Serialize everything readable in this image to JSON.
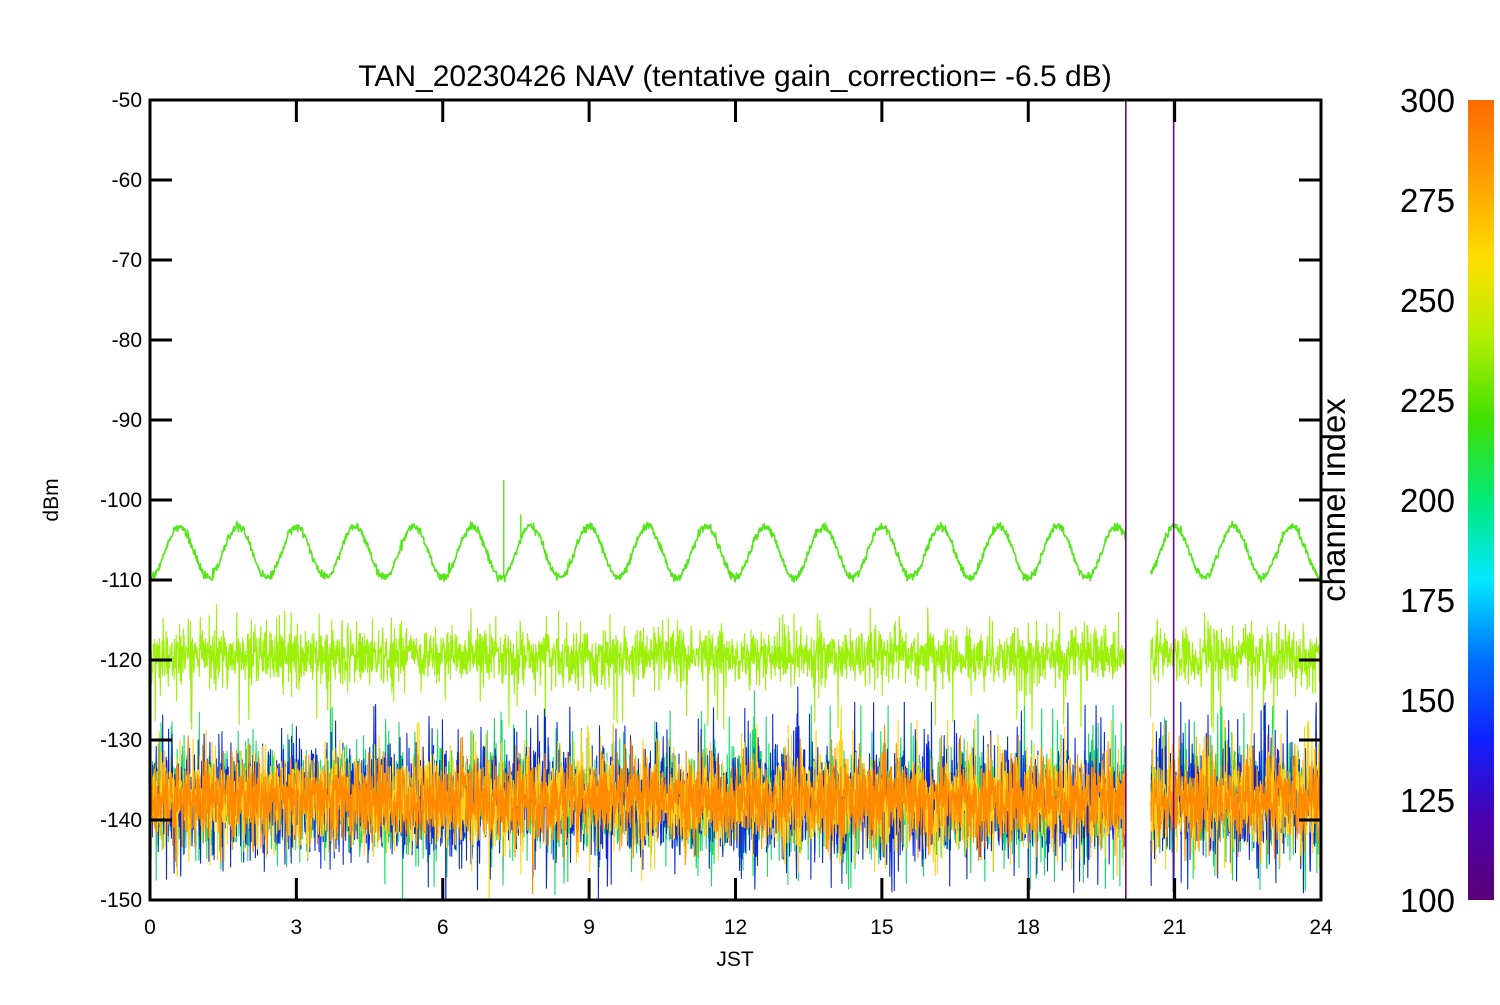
{
  "chart_data": {
    "type": "line",
    "title": "TAN_20230426 NAV (tentative gain_correction= -6.5 dB)",
    "xlabel": "JST",
    "ylabel": "dBm",
    "xlim": [
      0,
      24
    ],
    "ylim": [
      -150,
      -50
    ],
    "x_ticks": [
      "0",
      "3",
      "6",
      "9",
      "12",
      "15",
      "18",
      "21",
      "24"
    ],
    "x_tick_values": [
      0,
      3,
      6,
      9,
      12,
      15,
      18,
      21,
      24
    ],
    "y_ticks": [
      "-50",
      "-60",
      "-70",
      "-80",
      "-90",
      "-100",
      "-110",
      "-120",
      "-130",
      "-140",
      "-150"
    ],
    "y_tick_values": [
      -50,
      -60,
      -70,
      -80,
      -90,
      -100,
      -110,
      -120,
      -130,
      -140,
      -150
    ],
    "data_gap": [
      20.0,
      20.5
    ],
    "vertical_spikes": [
      {
        "x": 20.0,
        "y_top": -50,
        "color": "#6a0a8a"
      },
      {
        "x": 20.98,
        "y_top": -50,
        "color": "#6a0a8a"
      }
    ],
    "series": [
      {
        "channel": 250,
        "color": "#55e61a",
        "kind": "sinusoid",
        "mean": -106.5,
        "amplitude": 3.2,
        "period_hours": 1.2,
        "spikes": [
          {
            "x": 7.25,
            "y": -97.5
          },
          {
            "x": 7.6,
            "y": -101.8
          }
        ]
      },
      {
        "channel": 262,
        "color": "#9cf00a",
        "kind": "noise-band",
        "center": -119.5,
        "half_width": 4.0,
        "outlier_low": -127
      },
      {
        "channel": 210,
        "color": "#1ad96a",
        "kind": "noise-band",
        "center": -137.5,
        "half_width": 8.5
      },
      {
        "channel": 140,
        "color": "#0a2ad6",
        "kind": "noise-band",
        "center": -137.5,
        "half_width": 8.8
      },
      {
        "channel": 275,
        "color": "#ffd21a",
        "kind": "noise-band",
        "center": -137.5,
        "half_width": 7.2
      },
      {
        "channel": 295,
        "color": "#ff8a00",
        "kind": "noise-band",
        "center": -137.5,
        "half_width": 5.8
      }
    ],
    "colorbar": {
      "label": "channel index",
      "range": [
        100,
        300
      ],
      "ticks": [
        "100",
        "125",
        "150",
        "175",
        "200",
        "225",
        "250",
        "275",
        "300"
      ],
      "tick_values": [
        100,
        125,
        150,
        175,
        200,
        225,
        250,
        275,
        300
      ],
      "colors": [
        "#5a0077",
        "#4a00b0",
        "#1020ff",
        "#0070ff",
        "#00e8ff",
        "#00e878",
        "#40e000",
        "#b0ee00",
        "#ffe000",
        "#ffa000",
        "#ff6a00"
      ]
    },
    "grid": false,
    "legend": "colorbar-right"
  }
}
